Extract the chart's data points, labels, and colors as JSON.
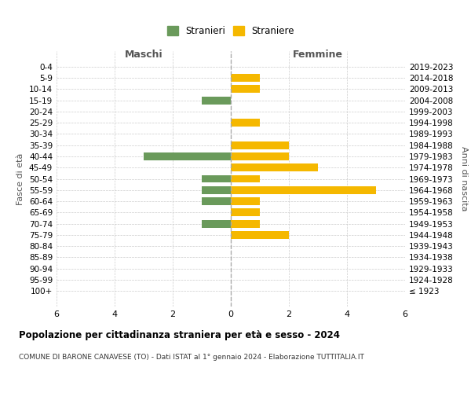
{
  "age_groups": [
    "100+",
    "95-99",
    "90-94",
    "85-89",
    "80-84",
    "75-79",
    "70-74",
    "65-69",
    "60-64",
    "55-59",
    "50-54",
    "45-49",
    "40-44",
    "35-39",
    "30-34",
    "25-29",
    "20-24",
    "15-19",
    "10-14",
    "5-9",
    "0-4"
  ],
  "birth_years": [
    "≤ 1923",
    "1924-1928",
    "1929-1933",
    "1934-1938",
    "1939-1943",
    "1944-1948",
    "1949-1953",
    "1954-1958",
    "1959-1963",
    "1964-1968",
    "1969-1973",
    "1974-1978",
    "1979-1983",
    "1984-1988",
    "1989-1993",
    "1994-1998",
    "1999-2003",
    "2004-2008",
    "2009-2013",
    "2014-2018",
    "2019-2023"
  ],
  "males": [
    0,
    0,
    0,
    0,
    0,
    0,
    1,
    0,
    1,
    1,
    1,
    0,
    3,
    0,
    0,
    0,
    0,
    1,
    0,
    0,
    0
  ],
  "females": [
    0,
    0,
    0,
    0,
    0,
    2,
    1,
    1,
    1,
    5,
    1,
    3,
    2,
    2,
    0,
    1,
    0,
    0,
    1,
    1,
    0
  ],
  "male_color": "#6a9a5b",
  "female_color": "#f5b800",
  "male_label": "Stranieri",
  "female_label": "Straniere",
  "title": "Popolazione per cittadinanza straniera per età e sesso - 2024",
  "subtitle": "COMUNE DI BARONE CANAVESE (TO) - Dati ISTAT al 1° gennaio 2024 - Elaborazione TUTTITALIA.IT",
  "xlabel_left": "Maschi",
  "xlabel_right": "Femmine",
  "ylabel_left": "Fasce di età",
  "ylabel_right": "Anni di nascita",
  "xlim": 6,
  "background_color": "#ffffff",
  "grid_color": "#cccccc"
}
